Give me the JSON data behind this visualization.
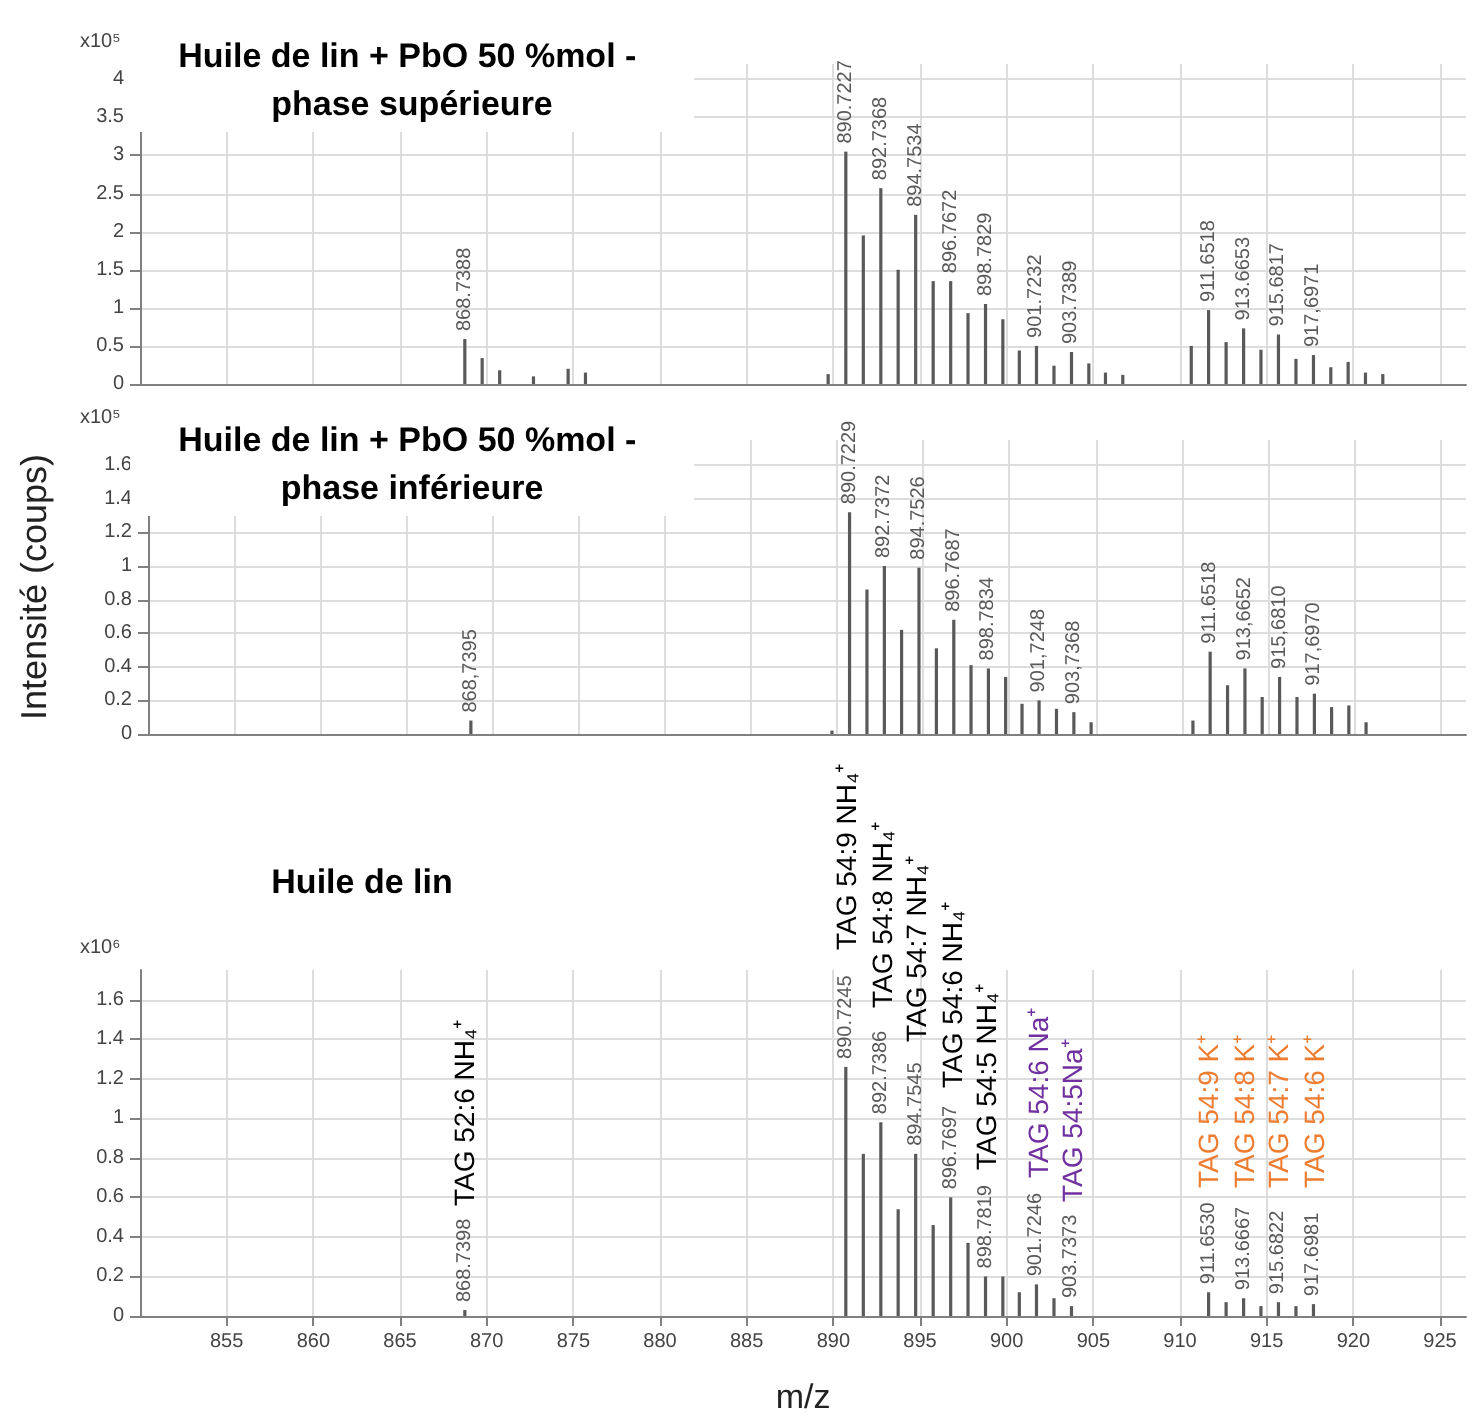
{
  "chart_data": [
    {
      "type": "bar",
      "title": "Huile de lin + PbO 50 %mol - phase supérieure",
      "xlim": [
        850,
        926.5
      ],
      "xticks": [
        855,
        860,
        865,
        870,
        875,
        880,
        885,
        890,
        895,
        900,
        905,
        910,
        915,
        920,
        925
      ],
      "ylim": [
        0,
        4.2
      ],
      "yticks": [
        0,
        0.5,
        1,
        1.5,
        2,
        2.5,
        3,
        3.5,
        4
      ],
      "grid": true,
      "tick_labels": "y",
      "series": [
        {
          "color": "#595959",
          "x": [
            868.74,
            869.74,
            870.75,
            872.7,
            874.7,
            875.7,
            889.7,
            890.72,
            891.73,
            892.74,
            893.74,
            894.75,
            895.76,
            896.77,
            897.77,
            898.78,
            899.78,
            900.73,
            901.72,
            902.73,
            903.74,
            904.74,
            905.7,
            906.7,
            910.65,
            911.65,
            912.66,
            913.67,
            914.67,
            915.68,
            916.69,
            917.7,
            918.7,
            919.7,
            920.7,
            921.7
          ],
          "values": [
            0.59,
            0.34,
            0.18,
            0.1,
            0.2,
            0.15,
            0.13,
            3.05,
            1.95,
            2.57,
            1.5,
            2.22,
            1.35,
            1.35,
            0.93,
            1.05,
            0.85,
            0.44,
            0.5,
            0.24,
            0.42,
            0.27,
            0.15,
            0.12,
            0.5,
            0.97,
            0.55,
            0.73,
            0.45,
            0.65,
            0.33,
            0.38,
            0.22,
            0.29,
            0.15,
            0.13
          ]
        }
      ],
      "annotations": [
        "x10⁵",
        {
          "text": "868.7388",
          "x": 868.74,
          "y": 0.59
        },
        {
          "text": "890.7227",
          "x": 890.72,
          "y": 3.05
        },
        {
          "text": "892.7368",
          "x": 892.74,
          "y": 2.57
        },
        {
          "text": "894.7534",
          "x": 894.75,
          "y": 2.22
        },
        {
          "text": "896.7672",
          "x": 896.77,
          "y": 1.35
        },
        {
          "text": "898.7829",
          "x": 898.78,
          "y": 1.05
        },
        {
          "text": "901.7232",
          "x": 901.72,
          "y": 0.5
        },
        {
          "text": "903.7389",
          "x": 903.74,
          "y": 0.42
        },
        {
          "text": "911.6518",
          "x": 911.65,
          "y": 0.97
        },
        {
          "text": "913.6653",
          "x": 913.67,
          "y": 0.73
        },
        {
          "text": "915.6817",
          "x": 915.68,
          "y": 0.65
        },
        {
          "text": "917,6971",
          "x": 917.7,
          "y": 0.38
        }
      ]
    },
    {
      "type": "bar",
      "title": "Huile de lin + PbO 50 %mol - phase inférieure",
      "ylabel": "Intensité (coups)",
      "xlim": [
        850,
        926.5
      ],
      "xticks": [
        855,
        860,
        865,
        870,
        875,
        880,
        885,
        890,
        895,
        900,
        905,
        910,
        915,
        920,
        925
      ],
      "ylim": [
        0,
        1.75
      ],
      "yticks": [
        0,
        0.2,
        0.4,
        0.6,
        0.8,
        1,
        1.2,
        1.4,
        1.6
      ],
      "grid": true,
      "tick_labels": "y",
      "series": [
        {
          "color": "#595959",
          "x": [
            868.74,
            889.7,
            890.72,
            891.73,
            892.74,
            893.74,
            894.75,
            895.76,
            896.77,
            897.77,
            898.78,
            899.78,
            900.73,
            901.72,
            902.73,
            903.74,
            904.74,
            910.65,
            911.65,
            912.66,
            913.67,
            914.67,
            915.68,
            916.69,
            917.7,
            918.7,
            919.7,
            920.7
          ],
          "values": [
            0.08,
            0.02,
            1.32,
            0.86,
            1.0,
            0.62,
            0.99,
            0.51,
            0.68,
            0.41,
            0.39,
            0.34,
            0.18,
            0.2,
            0.15,
            0.13,
            0.07,
            0.08,
            0.49,
            0.29,
            0.39,
            0.22,
            0.34,
            0.22,
            0.24,
            0.16,
            0.17,
            0.07
          ]
        }
      ],
      "annotations": [
        "x10⁵",
        {
          "text": "868,7395",
          "x": 868.74,
          "y": 0.08
        },
        {
          "text": "890.7229",
          "x": 890.72,
          "y": 1.32
        },
        {
          "text": "892.7372",
          "x": 892.74,
          "y": 1.0
        },
        {
          "text": "894.7526",
          "x": 894.75,
          "y": 0.99
        },
        {
          "text": "896.7687",
          "x": 896.77,
          "y": 0.68
        },
        {
          "text": "898.7834",
          "x": 898.78,
          "y": 0.39
        },
        {
          "text": "901,7248",
          "x": 901.72,
          "y": 0.2
        },
        {
          "text": "903,7368",
          "x": 903.74,
          "y": 0.13
        },
        {
          "text": "911.6518",
          "x": 911.65,
          "y": 0.49
        },
        {
          "text": "913,6652",
          "x": 913.67,
          "y": 0.39
        },
        {
          "text": "915,6810",
          "x": 915.68,
          "y": 0.34
        },
        {
          "text": "917,6970",
          "x": 917.7,
          "y": 0.24
        }
      ]
    },
    {
      "type": "bar",
      "title": "Huile de lin",
      "xlabel": "m/z",
      "xlim": [
        850,
        926.5
      ],
      "xticks": [
        855,
        860,
        865,
        870,
        875,
        880,
        885,
        890,
        895,
        900,
        905,
        910,
        915,
        920,
        925
      ],
      "ylim": [
        0,
        1.75
      ],
      "yticks": [
        0,
        0.2,
        0.4,
        0.6,
        0.8,
        1,
        1.2,
        1.4,
        1.6
      ],
      "grid": true,
      "series": [
        {
          "color": "#595959",
          "x": [
            868.74,
            890.72,
            891.73,
            892.74,
            893.74,
            894.75,
            895.76,
            896.77,
            897.77,
            898.78,
            899.78,
            900.73,
            901.72,
            902.73,
            903.74,
            911.65,
            912.66,
            913.67,
            914.67,
            915.68,
            916.69,
            917.7
          ],
          "values": [
            0.03,
            1.26,
            0.82,
            0.98,
            0.54,
            0.82,
            0.46,
            0.6,
            0.37,
            0.2,
            0.2,
            0.12,
            0.16,
            0.09,
            0.05,
            0.12,
            0.07,
            0.09,
            0.05,
            0.07,
            0.05,
            0.06
          ]
        }
      ],
      "annotations": [
        "x10⁶",
        {
          "text": "868.7398",
          "x": 868.74,
          "y": 0.03
        },
        {
          "text": "890.7245",
          "x": 890.72,
          "y": 1.26
        },
        {
          "text": "892.7386",
          "x": 892.74,
          "y": 0.98
        },
        {
          "text": "894.7545",
          "x": 894.75,
          "y": 0.82
        },
        {
          "text": "896.7697",
          "x": 896.77,
          "y": 0.6
        },
        {
          "text": "898.7819",
          "x": 898.78,
          "y": 0.2
        },
        {
          "text": "901.7246",
          "x": 901.72,
          "y": 0.16
        },
        {
          "text": "903.7373",
          "x": 903.74,
          "y": 0.05
        },
        {
          "text": "911.6530",
          "x": 911.65,
          "y": 0.12
        },
        {
          "text": "913.6667",
          "x": 913.67,
          "y": 0.09
        },
        {
          "text": "915.6822",
          "x": 915.68,
          "y": 0.07
        },
        {
          "text": "917.6981",
          "x": 917.7,
          "y": 0.06
        },
        "TAG 52:6 NH₄⁺",
        "TAG 54:9 NH₄⁺",
        "TAG 54:8 NH₄⁺",
        "TAG 54:7 NH₄⁺",
        "TAG 54:6 NH₄⁺",
        "TAG 54:5 NH₄⁺",
        "TAG 54:6 Na⁺",
        "TAG 54:5Na⁺",
        "TAG 54:9 K⁺",
        "TAG 54:8 K⁺",
        "TAG 54:7 K⁺",
        "TAG 54:6 K⁺"
      ]
    }
  ]
}
